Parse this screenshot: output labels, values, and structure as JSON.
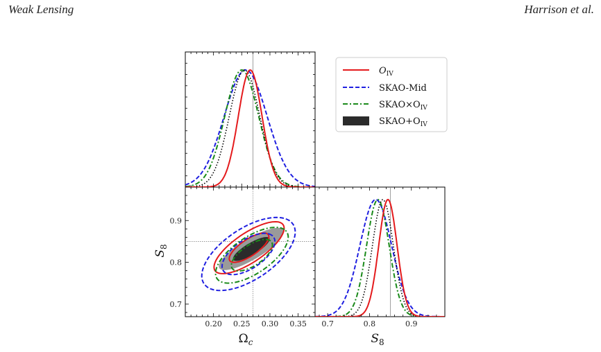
{
  "header": {
    "left": "Weak Lensing",
    "right": "Harrison et al."
  },
  "colors": {
    "o_iv": "#e41a1c",
    "skao_mid": "#1f1fe0",
    "cross": "#1a8a1a",
    "combined_fill": "#2b2b2b",
    "combined_outer_fill": "#9a9a9a",
    "truth_line": "#888888"
  },
  "chart_data": {
    "type": "contour",
    "parameters": [
      "Omega_c",
      "S_8"
    ],
    "truth": {
      "Omega_c": 0.27,
      "S_8": 0.85
    },
    "axes": {
      "Omega_c": {
        "label": "Ω",
        "label_sub": "c",
        "range": [
          0.15,
          0.38
        ],
        "ticks": [
          "0.20",
          "0.25",
          "0.30",
          "0.35"
        ],
        "tick_values": [
          0.2,
          0.25,
          0.3,
          0.35
        ]
      },
      "S_8": {
        "label": "S",
        "label_sub": "8",
        "range": [
          0.67,
          0.98
        ],
        "ticks": [
          "0.7",
          "0.8",
          "0.9"
        ],
        "tick_values": [
          0.7,
          0.8,
          0.9
        ]
      }
    },
    "legend": {
      "placement": "top-right",
      "entries": [
        {
          "key": "o_iv",
          "label_main": "O",
          "label_sub": "IV",
          "style": "solid"
        },
        {
          "key": "skao_mid",
          "label_main": "SKAO-Mid",
          "label_sub": "",
          "style": "dashed"
        },
        {
          "key": "cross",
          "label_main": "SKAO×O",
          "label_sub": "IV",
          "style": "dashdot"
        },
        {
          "key": "combined",
          "label_main": "SKAO+O",
          "label_sub": "IV",
          "style": "filled"
        }
      ]
    },
    "series": [
      {
        "key": "o_iv",
        "omega_c_marginal": {
          "mean": 0.265,
          "sigma": 0.021
        },
        "s8_marginal": {
          "mean": 0.844,
          "sigma": 0.022
        },
        "ellipse": {
          "center_omega_c": 0.263,
          "center_s8": 0.835,
          "sigma_omega_c": 0.027,
          "sigma_s8": 0.027,
          "correlation": 0.75
        },
        "levels_sigma": [
          1,
          2
        ]
      },
      {
        "key": "skao_mid",
        "omega_c_marginal": {
          "mean": 0.257,
          "sigma": 0.038
        },
        "s8_marginal": {
          "mean": 0.815,
          "sigma": 0.038
        },
        "ellipse": {
          "center_omega_c": 0.262,
          "center_s8": 0.82,
          "sigma_omega_c": 0.036,
          "sigma_s8": 0.038,
          "correlation": 0.6
        },
        "levels_sigma": [
          1,
          2
        ]
      },
      {
        "key": "cross",
        "omega_c_marginal": {
          "mean": 0.25,
          "sigma": 0.03
        },
        "s8_marginal": {
          "mean": 0.82,
          "sigma": 0.027
        },
        "ellipse": {
          "center_omega_c": 0.268,
          "center_s8": 0.817,
          "sigma_omega_c": 0.028,
          "sigma_s8": 0.029,
          "correlation": 0.65
        },
        "levels_sigma": [
          1,
          2
        ]
      },
      {
        "key": "combined",
        "omega_c_marginal": {
          "mean": 0.255,
          "sigma": 0.027
        },
        "s8_marginal": {
          "mean": 0.832,
          "sigma": 0.025
        },
        "ellipse": {
          "center_omega_c": 0.267,
          "center_s8": 0.832,
          "sigma_omega_c": 0.025,
          "sigma_s8": 0.022,
          "correlation": 0.82
        },
        "levels_sigma": [
          1,
          2
        ]
      }
    ]
  }
}
